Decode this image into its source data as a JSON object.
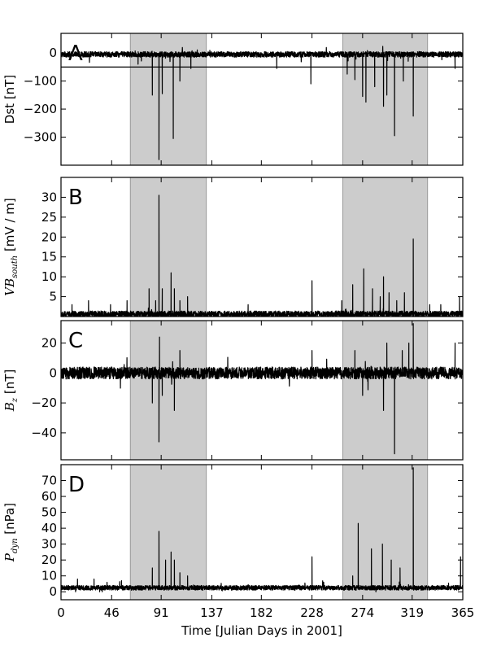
{
  "chart_data": [
    {
      "type": "line",
      "panel_label": "A",
      "ylabel": "Dst [nT]",
      "ylim": [
        -400,
        70
      ],
      "yticks": [
        0,
        -100,
        -200,
        -300
      ],
      "ytick_labels": [
        "0",
        "−100",
        "−200",
        "−300"
      ],
      "reference_line": -50,
      "baseline": -5,
      "noise": 10,
      "spikes": [
        [
          70,
          -40
        ],
        [
          83,
          -150
        ],
        [
          89,
          -380
        ],
        [
          92,
          -145
        ],
        [
          102,
          -305
        ],
        [
          108,
          -100
        ],
        [
          118,
          -55
        ],
        [
          196,
          -55
        ],
        [
          227,
          -110
        ],
        [
          260,
          -75
        ],
        [
          267,
          -95
        ],
        [
          274,
          -155
        ],
        [
          277,
          -175
        ],
        [
          285,
          -120
        ],
        [
          293,
          -190
        ],
        [
          296,
          -150
        ],
        [
          303,
          -295
        ],
        [
          311,
          -100
        ],
        [
          320,
          -225
        ],
        [
          358,
          -55
        ]
      ],
      "shaded_intervals": [
        [
          63,
          132
        ],
        [
          256,
          333
        ]
      ]
    },
    {
      "type": "line",
      "panel_label": "B",
      "ylabel": "VB_south [mV / m]",
      "ylabel_main": "VB",
      "ylabel_sub": "south",
      "ylabel_unit": " [mV / m]",
      "ylim": [
        0,
        35
      ],
      "yticks": [
        5,
        10,
        15,
        20,
        25,
        30
      ],
      "ytick_labels": [
        "5",
        "10",
        "15",
        "20",
        "25",
        "30"
      ],
      "baseline": 0.6,
      "noise": 0.8,
      "floor": 0,
      "spikes": [
        [
          10,
          3
        ],
        [
          25,
          4
        ],
        [
          45,
          3
        ],
        [
          60,
          4
        ],
        [
          80,
          7
        ],
        [
          86,
          4
        ],
        [
          89,
          30.5
        ],
        [
          92,
          7
        ],
        [
          100,
          11
        ],
        [
          103,
          7
        ],
        [
          108,
          4
        ],
        [
          115,
          5
        ],
        [
          170,
          3
        ],
        [
          228,
          9
        ],
        [
          255,
          4
        ],
        [
          265,
          8
        ],
        [
          275,
          12
        ],
        [
          283,
          7
        ],
        [
          290,
          5
        ],
        [
          293,
          10
        ],
        [
          298,
          6
        ],
        [
          305,
          4
        ],
        [
          312,
          6
        ],
        [
          320,
          19.5
        ],
        [
          335,
          3
        ],
        [
          345,
          3
        ],
        [
          362,
          5
        ]
      ],
      "shaded_intervals": [
        [
          63,
          132
        ],
        [
          256,
          333
        ]
      ]
    },
    {
      "type": "line",
      "panel_label": "C",
      "ylabel": "B_z [nT]",
      "ylabel_main": "B",
      "ylabel_sub": "z",
      "ylabel_unit": " [nT]",
      "ylim": [
        -58,
        35
      ],
      "yticks": [
        20,
        0,
        -20,
        -40
      ],
      "ytick_labels": [
        "20",
        "0",
        "−20",
        "−40"
      ],
      "baseline": 0,
      "noise": 4,
      "spikes": [
        [
          83,
          -20
        ],
        [
          89,
          -46
        ],
        [
          89.5,
          24
        ],
        [
          92,
          -15
        ],
        [
          103,
          -25
        ],
        [
          108,
          15
        ],
        [
          228,
          15
        ],
        [
          267,
          15
        ],
        [
          274,
          -15
        ],
        [
          293,
          -25
        ],
        [
          296,
          20
        ],
        [
          303,
          -54
        ],
        [
          310,
          15
        ],
        [
          316,
          20
        ],
        [
          320,
          33
        ],
        [
          358,
          20
        ]
      ],
      "shaded_intervals": [
        [
          63,
          132
        ],
        [
          256,
          333
        ]
      ]
    },
    {
      "type": "line",
      "panel_label": "D",
      "ylabel": "P_dyn [nPa]",
      "ylabel_main": "P",
      "ylabel_sub": "dyn",
      "ylabel_unit": " [nPa]",
      "ylim": [
        -5,
        80
      ],
      "yticks": [
        0,
        10,
        20,
        30,
        40,
        50,
        60,
        70
      ],
      "ytick_labels": [
        "0",
        "10",
        "20",
        "30",
        "40",
        "50",
        "60",
        "70"
      ],
      "baseline": 2.5,
      "noise": 1.5,
      "floor": 0,
      "spikes": [
        [
          15,
          8
        ],
        [
          30,
          8
        ],
        [
          55,
          7
        ],
        [
          83,
          15
        ],
        [
          89,
          38
        ],
        [
          95,
          20
        ],
        [
          100,
          25
        ],
        [
          103,
          20
        ],
        [
          108,
          12
        ],
        [
          115,
          10
        ],
        [
          228,
          22
        ],
        [
          265,
          10
        ],
        [
          270,
          43
        ],
        [
          282,
          27
        ],
        [
          292,
          30
        ],
        [
          300,
          20
        ],
        [
          308,
          15
        ],
        [
          320,
          78
        ],
        [
          363,
          22
        ]
      ],
      "shaded_intervals": [
        [
          63,
          132
        ],
        [
          256,
          333
        ]
      ]
    }
  ],
  "x_axis": {
    "label": "Time [Julian Days in 2001]",
    "range": [
      0,
      365
    ],
    "ticks": [
      0,
      46,
      91,
      137,
      182,
      228,
      274,
      319,
      365
    ],
    "tick_labels": [
      "0",
      "46",
      "91",
      "137",
      "182",
      "228",
      "274",
      "319",
      "365"
    ]
  },
  "colors": {
    "line": "#000000",
    "shade": "#cccccc",
    "shade_edge": "#999999",
    "reference_line": "#000000"
  }
}
